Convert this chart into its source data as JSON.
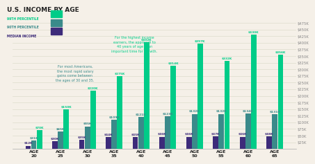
{
  "title": "U.S. INCOME BY AGE",
  "ages": [
    "AGE\n20",
    "AGE\n25",
    "AGE\n30",
    "AGE\n35",
    "AGE\n40",
    "AGE\n45",
    "AGE\n50",
    "AGE\n55",
    "AGE\n60",
    "AGE\n65"
  ],
  "median": [
    12000,
    30000,
    35000,
    44000,
    45000,
    46000,
    46000,
    47000,
    46000,
    48000
  ],
  "p90": [
    31000,
    65000,
    85000,
    109000,
    121000,
    123000,
    132000,
    132000,
    134000,
    131000
  ],
  "p99": [
    70000,
    150000,
    220000,
    275000,
    402000,
    314000,
    397000,
    332000,
    430000,
    356000
  ],
  "color_median": "#3d2b7a",
  "color_p90": "#3a8a8a",
  "color_p99": "#00cc88",
  "background": "#f5f0e8",
  "grid_color": "#ddddcc",
  "text_color": "#888888",
  "title_color": "#222222",
  "ylim": [
    0,
    475000
  ],
  "yticks": [
    25000,
    50000,
    75000,
    100000,
    125000,
    150000,
    175000,
    200000,
    225000,
    250000,
    275000,
    300000,
    325000,
    350000,
    375000,
    400000,
    425000,
    450000,
    475000
  ],
  "ytick_labels": [
    "$25K",
    "$50K",
    "$75K",
    "$100K",
    "$125K",
    "$150K",
    "$175K",
    "$200K",
    "$225K",
    "$250K",
    "$275K",
    "$300K",
    "$325K",
    "$350K",
    "$375K",
    "$400K",
    "$425K",
    "$450K",
    "$475K"
  ],
  "legend_labels": [
    "99TH PERCENTILE",
    "90TH PERCENTILE",
    "MEDIAN INCOME"
  ],
  "annotation1_text": "For most Americans,\nthe most rapid salary\ngains come between\nthe ages of 30 and 35.",
  "annotation2_text": "For the highest income\nearners, the approach to\n40 years of age is an\nimportant time for growth.",
  "bar_labels_median": [
    "$12K",
    "$30K",
    "$35K",
    "$44K",
    "$45K",
    "$46K",
    "$46K",
    "$47K",
    "$46K",
    "$48K"
  ],
  "bar_labels_p90": [
    "$31K",
    "$65K",
    "$85K",
    "$109K",
    "$121K",
    "$123K",
    "$132K",
    "$132K",
    "$134K",
    "$131K"
  ],
  "bar_labels_p99": [
    "$70K",
    "$150K",
    "$220K",
    "$275K",
    "$402K",
    "$314K",
    "$397K",
    "$332K",
    "$430K",
    "$356K"
  ]
}
